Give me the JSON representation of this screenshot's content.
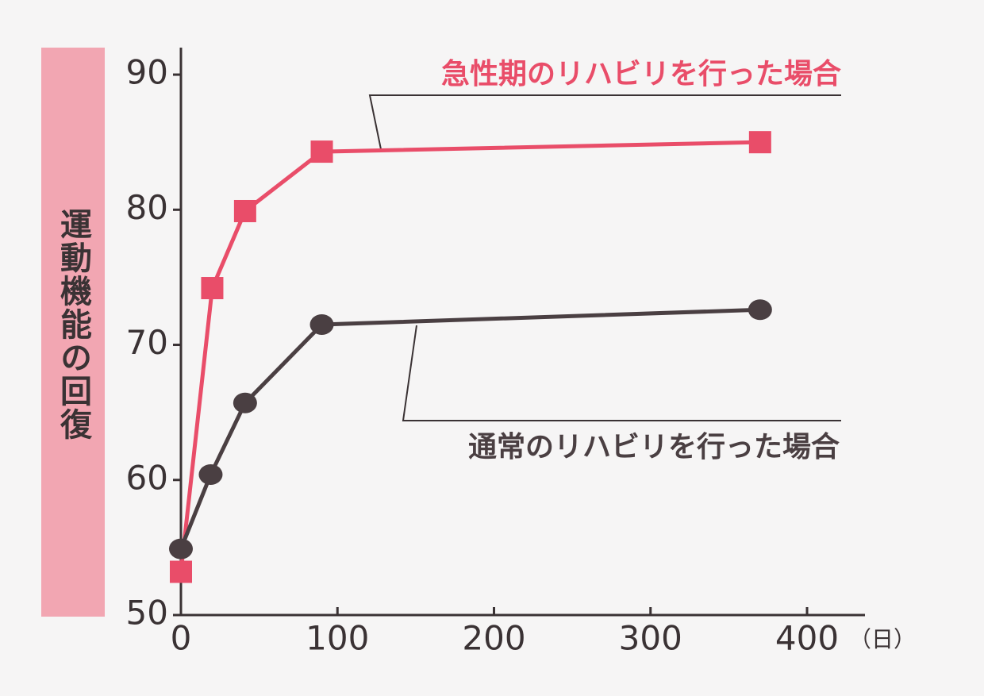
{
  "chart_data": {
    "type": "line",
    "ylabel": "運動機能の回復",
    "xlabel": "（日）",
    "xlim": [
      0,
      437
    ],
    "ylim": [
      50,
      92
    ],
    "xticks": [
      0,
      100,
      200,
      300,
      400
    ],
    "yticks": [
      50,
      60,
      70,
      80,
      90
    ],
    "series": [
      {
        "name": "急性期のリハビリを行った場合",
        "color": "#e94d69",
        "marker": "square",
        "x": [
          0,
          20,
          41,
          90,
          370
        ],
        "values": [
          53.2,
          74.2,
          79.9,
          84.3,
          85.0
        ]
      },
      {
        "name": "通常のリハビリを行った場合",
        "color": "#4a3f42",
        "marker": "circle",
        "x": [
          0,
          19,
          41,
          90,
          370
        ],
        "values": [
          54.9,
          60.4,
          65.7,
          71.5,
          72.6
        ]
      }
    ]
  }
}
